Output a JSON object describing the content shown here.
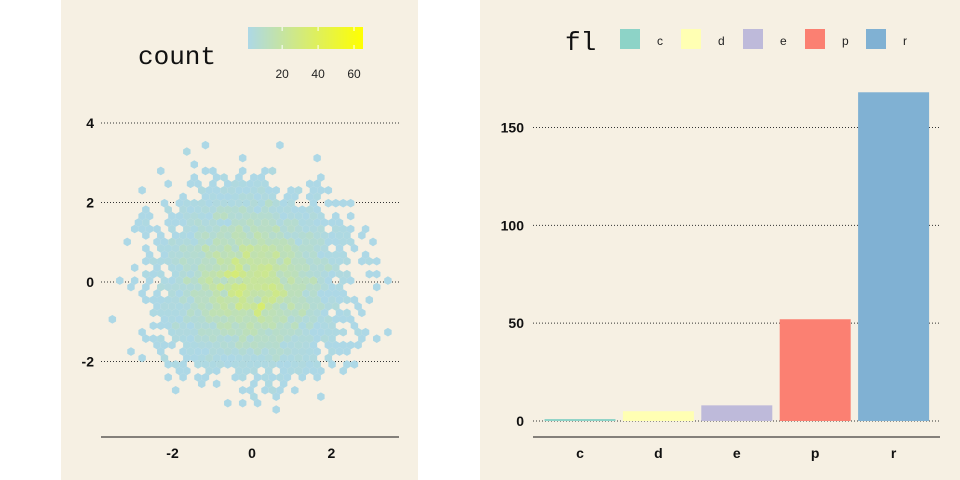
{
  "colors": {
    "panel_bg": "#F6F0E3",
    "page_bg": "#FFFFFF",
    "grid": "#333333",
    "axis": "#111111",
    "hex_low": "#ADD8E6",
    "hex_high": "#FFFF00"
  },
  "chart_data": [
    {
      "type": "heatmap",
      "subtype": "hexbin",
      "title": "",
      "xlabel": "",
      "ylabel": "",
      "xlim": [
        -3.8,
        3.7
      ],
      "ylim": [
        -3.9,
        4.2
      ],
      "x_ticks": [
        -2,
        0,
        2
      ],
      "y_ticks": [
        -2,
        0,
        2,
        4
      ],
      "x_tick_labels": [
        "-2",
        "0",
        "2"
      ],
      "y_tick_labels": [
        "-2",
        "0",
        "2",
        "4"
      ],
      "grid": "horizontal dotted",
      "legend": {
        "title": "count",
        "placement": "top",
        "range": [
          1,
          65
        ],
        "breaks": [
          20,
          40,
          60
        ],
        "break_labels": [
          "20",
          "40",
          "60"
        ],
        "low_color": "#ADD8E6",
        "high_color": "#FFFF00"
      },
      "hex_distribution": {
        "description_of_data": "bivariate standard normal sample, approximately centered at (0, 0) with sd 1",
        "center": [
          0,
          0
        ],
        "sd": [
          1,
          1
        ],
        "max_count": 65
      }
    },
    {
      "type": "bar",
      "title": "",
      "xlabel": "",
      "ylabel": "",
      "categories": [
        "c",
        "d",
        "e",
        "p",
        "r"
      ],
      "values": [
        1,
        5,
        8,
        52,
        168
      ],
      "colors": [
        "#8DD3C7",
        "#FFFFB3",
        "#BEBADA",
        "#FB8072",
        "#80B1D3"
      ],
      "ylim": [
        0,
        172
      ],
      "y_ticks": [
        0,
        50,
        100,
        150
      ],
      "y_tick_labels": [
        "0",
        "50",
        "100",
        "150"
      ],
      "grid": "horizontal dotted",
      "legend": {
        "title": "fl",
        "placement": "top",
        "entries": [
          "c",
          "d",
          "e",
          "p",
          "r"
        ]
      }
    }
  ]
}
